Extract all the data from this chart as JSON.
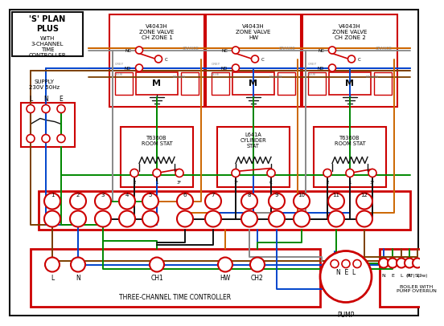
{
  "bg": "#ffffff",
  "red": "#cc0000",
  "blue": "#0044cc",
  "green": "#008800",
  "brown": "#7B3F00",
  "orange": "#cc6600",
  "gray": "#888888",
  "black": "#111111",
  "title1": "'S' PLAN",
  "title2": "PLUS",
  "sub": "WITH\n3-CHANNEL\nTIME\nCONTROLLER",
  "supply": "SUPPLY\n230V 50Hz",
  "lne": "L  N  E",
  "zv_labels": [
    "V4043H\nZONE VALVE\nCH ZONE 1",
    "V4043H\nZONE VALVE\nHW",
    "V4043H\nZONE VALVE\nCH ZONE 2"
  ],
  "stat_labels": [
    "T6360B\nROOM STAT",
    "L641A\nCYLINDER\nSTAT",
    "T6360B\nROOM STAT"
  ],
  "stat_terms": [
    [
      "2",
      "1",
      "3*"
    ],
    [
      "1*",
      "C"
    ],
    [
      "2",
      "1",
      "3*"
    ]
  ],
  "term_nums": [
    "1",
    "2",
    "3",
    "4",
    "5",
    "6",
    "7",
    "8",
    "9",
    "10",
    "11",
    "12"
  ],
  "ctrl_labels": [
    "L",
    "N",
    "CH1",
    "HW",
    "CH2"
  ],
  "pump_label": "N  E  L",
  "pump_text": "PUMP",
  "boiler_labels": [
    "N",
    "E",
    "L",
    "PL",
    "SL"
  ],
  "boiler_sub": "(PF)  (9w)",
  "boiler_text": "BOILER WITH\nPUMP OVERRUN",
  "ctrl_text": "THREE-CHANNEL TIME CONTROLLER"
}
